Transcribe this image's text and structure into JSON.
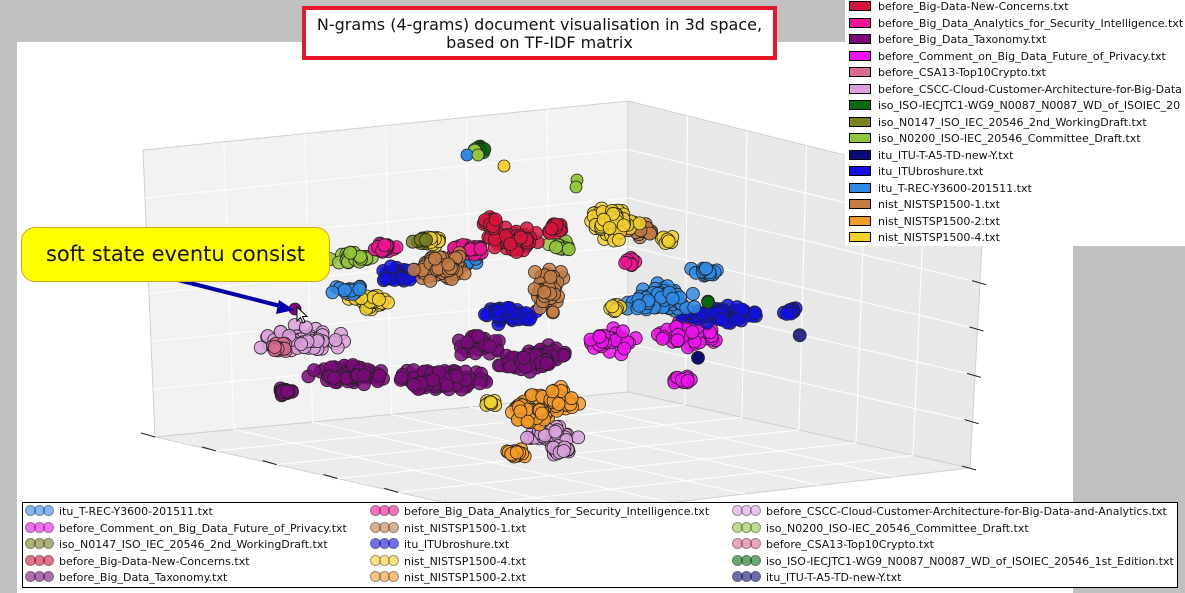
{
  "title": {
    "line1": "N-grams (4-grams) document visualisation in 3d space,",
    "line2": "based on TF-IDF matrix"
  },
  "callout": {
    "text": "soft state eventu consist"
  },
  "top_legend": [
    {
      "label": "before_Big-Data-New-Concerns.txt",
      "color": "#d8143c"
    },
    {
      "label": "before_Big_Data_Analytics_for_Security_Intelligence.txt",
      "color": "#ee1493"
    },
    {
      "label": "before_Big_Data_Taxonomy.txt",
      "color": "#7a0a7a"
    },
    {
      "label": "before_Comment_on_Big_Data_Future_of_Privacy.txt",
      "color": "#f010f0"
    },
    {
      "label": "before_CSA13-Top10Crypto.txt",
      "color": "#d96b91"
    },
    {
      "label": "before_CSCC-Cloud-Customer-Architecture-for-Big-Data",
      "color": "#dba0dc"
    },
    {
      "label": "iso_ISO-IECJTC1-WG9_N0087_N0087_WD_of_ISOIEC_20",
      "color": "#0a6a14"
    },
    {
      "label": "iso_N0147_ISO_IEC_20546_2nd_WorkingDraft.txt",
      "color": "#7a8020"
    },
    {
      "label": "iso_N0200_ISO-IEC_20546_Committee_Draft.txt",
      "color": "#92c43c"
    },
    {
      "label": "itu_ITU-T-A5-TD-new-Y.txt",
      "color": "#0a0a7a"
    },
    {
      "label": "itu_ITUbroshure.txt",
      "color": "#1010e0"
    },
    {
      "label": "itu_T-REC-Y3600-201511.txt",
      "color": "#2f8ae6"
    },
    {
      "label": "nist_NISTSP1500-1.txt",
      "color": "#c37d45"
    },
    {
      "label": "nist_NISTSP1500-2.txt",
      "color": "#f59b28"
    },
    {
      "label": "nist_NISTSP1500-4.txt",
      "color": "#f2d02e"
    }
  ],
  "bottom_legend": [
    [
      {
        "label": "itu_T-REC-Y3600-201511.txt",
        "color": "#2f8ae6"
      },
      {
        "label": "before_Comment_on_Big_Data_Future_of_Privacy.txt",
        "color": "#f010f0"
      },
      {
        "label": "iso_N0147_ISO_IEC_20546_2nd_WorkingDraft.txt",
        "color": "#7a8020"
      },
      {
        "label": "before_Big-Data-New-Concerns.txt",
        "color": "#d8143c"
      },
      {
        "label": "before_Big_Data_Taxonomy.txt",
        "color": "#7a0a7a"
      }
    ],
    [
      {
        "label": "before_Big_Data_Analytics_for_Security_Intelligence.txt",
        "color": "#ee1493"
      },
      {
        "label": "nist_NISTSP1500-1.txt",
        "color": "#c37d45"
      },
      {
        "label": "itu_ITUbroshure.txt",
        "color": "#1010e0"
      },
      {
        "label": "nist_NISTSP1500-4.txt",
        "color": "#f2d02e"
      },
      {
        "label": "nist_NISTSP1500-2.txt",
        "color": "#f59b28"
      }
    ],
    [
      {
        "label": "before_CSCC-Cloud-Customer-Architecture-for-Big-Data-and-Analytics.txt",
        "color": "#dba0dc"
      },
      {
        "label": "iso_N0200_ISO-IEC_20546_Committee_Draft.txt",
        "color": "#92c43c"
      },
      {
        "label": "before_CSA13-Top10Crypto.txt",
        "color": "#d96b91"
      },
      {
        "label": "iso_ISO-IECJTC1-WG9_N0087_N0087_WD_of_ISOIEC_20546_1st_Edition.txt",
        "color": "#0a6a14"
      },
      {
        "label": "itu_ITU-T-A5-TD-new-Y.txt",
        "color": "#0a0a7a"
      }
    ]
  ],
  "chart_data": {
    "type": "scatter",
    "projection": "3d",
    "title": "N-grams (4-grams) document visualisation in 3d space, based on TF-IDF matrix",
    "grid": true,
    "legend_placement": [
      "top-right",
      "bottom"
    ],
    "series": [
      {
        "name": "itu_T-REC-Y3600-201511.txt",
        "color": "#2f8ae6"
      },
      {
        "name": "before_Comment_on_Big_Data_Future_of_Privacy.txt",
        "color": "#f010f0"
      },
      {
        "name": "iso_N0147_ISO_IEC_20546_2nd_WorkingDraft.txt",
        "color": "#7a8020"
      },
      {
        "name": "before_Big-Data-New-Concerns.txt",
        "color": "#d8143c"
      },
      {
        "name": "before_Big_Data_Taxonomy.txt",
        "color": "#7a0a7a"
      },
      {
        "name": "before_Big_Data_Analytics_for_Security_Intelligence.txt",
        "color": "#ee1493"
      },
      {
        "name": "nist_NISTSP1500-1.txt",
        "color": "#c37d45"
      },
      {
        "name": "itu_ITUbroshure.txt",
        "color": "#1010e0"
      },
      {
        "name": "nist_NISTSP1500-4.txt",
        "color": "#f2d02e"
      },
      {
        "name": "nist_NISTSP1500-2.txt",
        "color": "#f59b28"
      },
      {
        "name": "before_CSCC-Cloud-Customer-Architecture-for-Big-Data-and-Analytics.txt",
        "color": "#dba0dc"
      },
      {
        "name": "iso_N0200_ISO-IEC_20546_Committee_Draft.txt",
        "color": "#92c43c"
      },
      {
        "name": "before_CSA13-Top10Crypto.txt",
        "color": "#d96b91"
      },
      {
        "name": "iso_ISO-IECJTC1-WG9_N0087_N0087_WD_of_ISOIEC_20546_1st_Edition.txt",
        "color": "#0a6a14"
      },
      {
        "name": "itu_ITU-T-A5-TD-new-Y.txt",
        "color": "#0a0a7a"
      }
    ]
  }
}
